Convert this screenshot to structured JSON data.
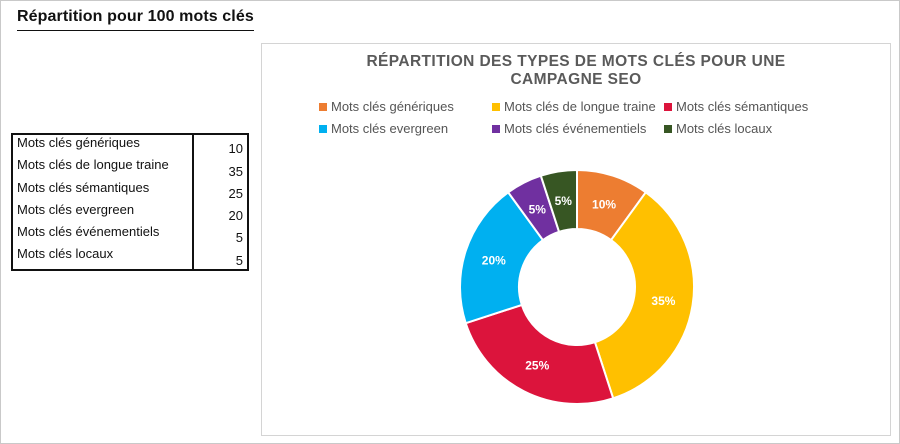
{
  "sheet": {
    "title": "Répartition pour 100 mots clés"
  },
  "table": {
    "rows": [
      {
        "label": "Mots clés génériques",
        "value": "10"
      },
      {
        "label": "Mots clés de longue traine",
        "value": "35"
      },
      {
        "label": "Mots clés sémantiques",
        "value": "25"
      },
      {
        "label": "Mots clés evergreen",
        "value": "20"
      },
      {
        "label": "Mots clés événementiels",
        "value": "5"
      },
      {
        "label": "Mots clés locaux",
        "value": "5"
      }
    ]
  },
  "chart_data": {
    "type": "pie",
    "variant": "donut",
    "title_line1": "RÉPARTITION DES TYPES DE MOTS CLÉS POUR UNE",
    "title_line2": "CAMPAGNE SEO",
    "categories": [
      "Mots clés génériques",
      "Mots clés de longue traine",
      "Mots clés sémantiques",
      "Mots clés evergreen",
      "Mots clés événementiels",
      "Mots clés locaux"
    ],
    "values": [
      10,
      35,
      25,
      20,
      5,
      5
    ],
    "data_labels": [
      "10%",
      "35%",
      "25%",
      "20%",
      "5%",
      "5%"
    ],
    "colors": [
      "#ed7d31",
      "#ffc000",
      "#dc143c",
      "#00b0f0",
      "#7030a0",
      "#375623"
    ],
    "legend_position": "top"
  }
}
